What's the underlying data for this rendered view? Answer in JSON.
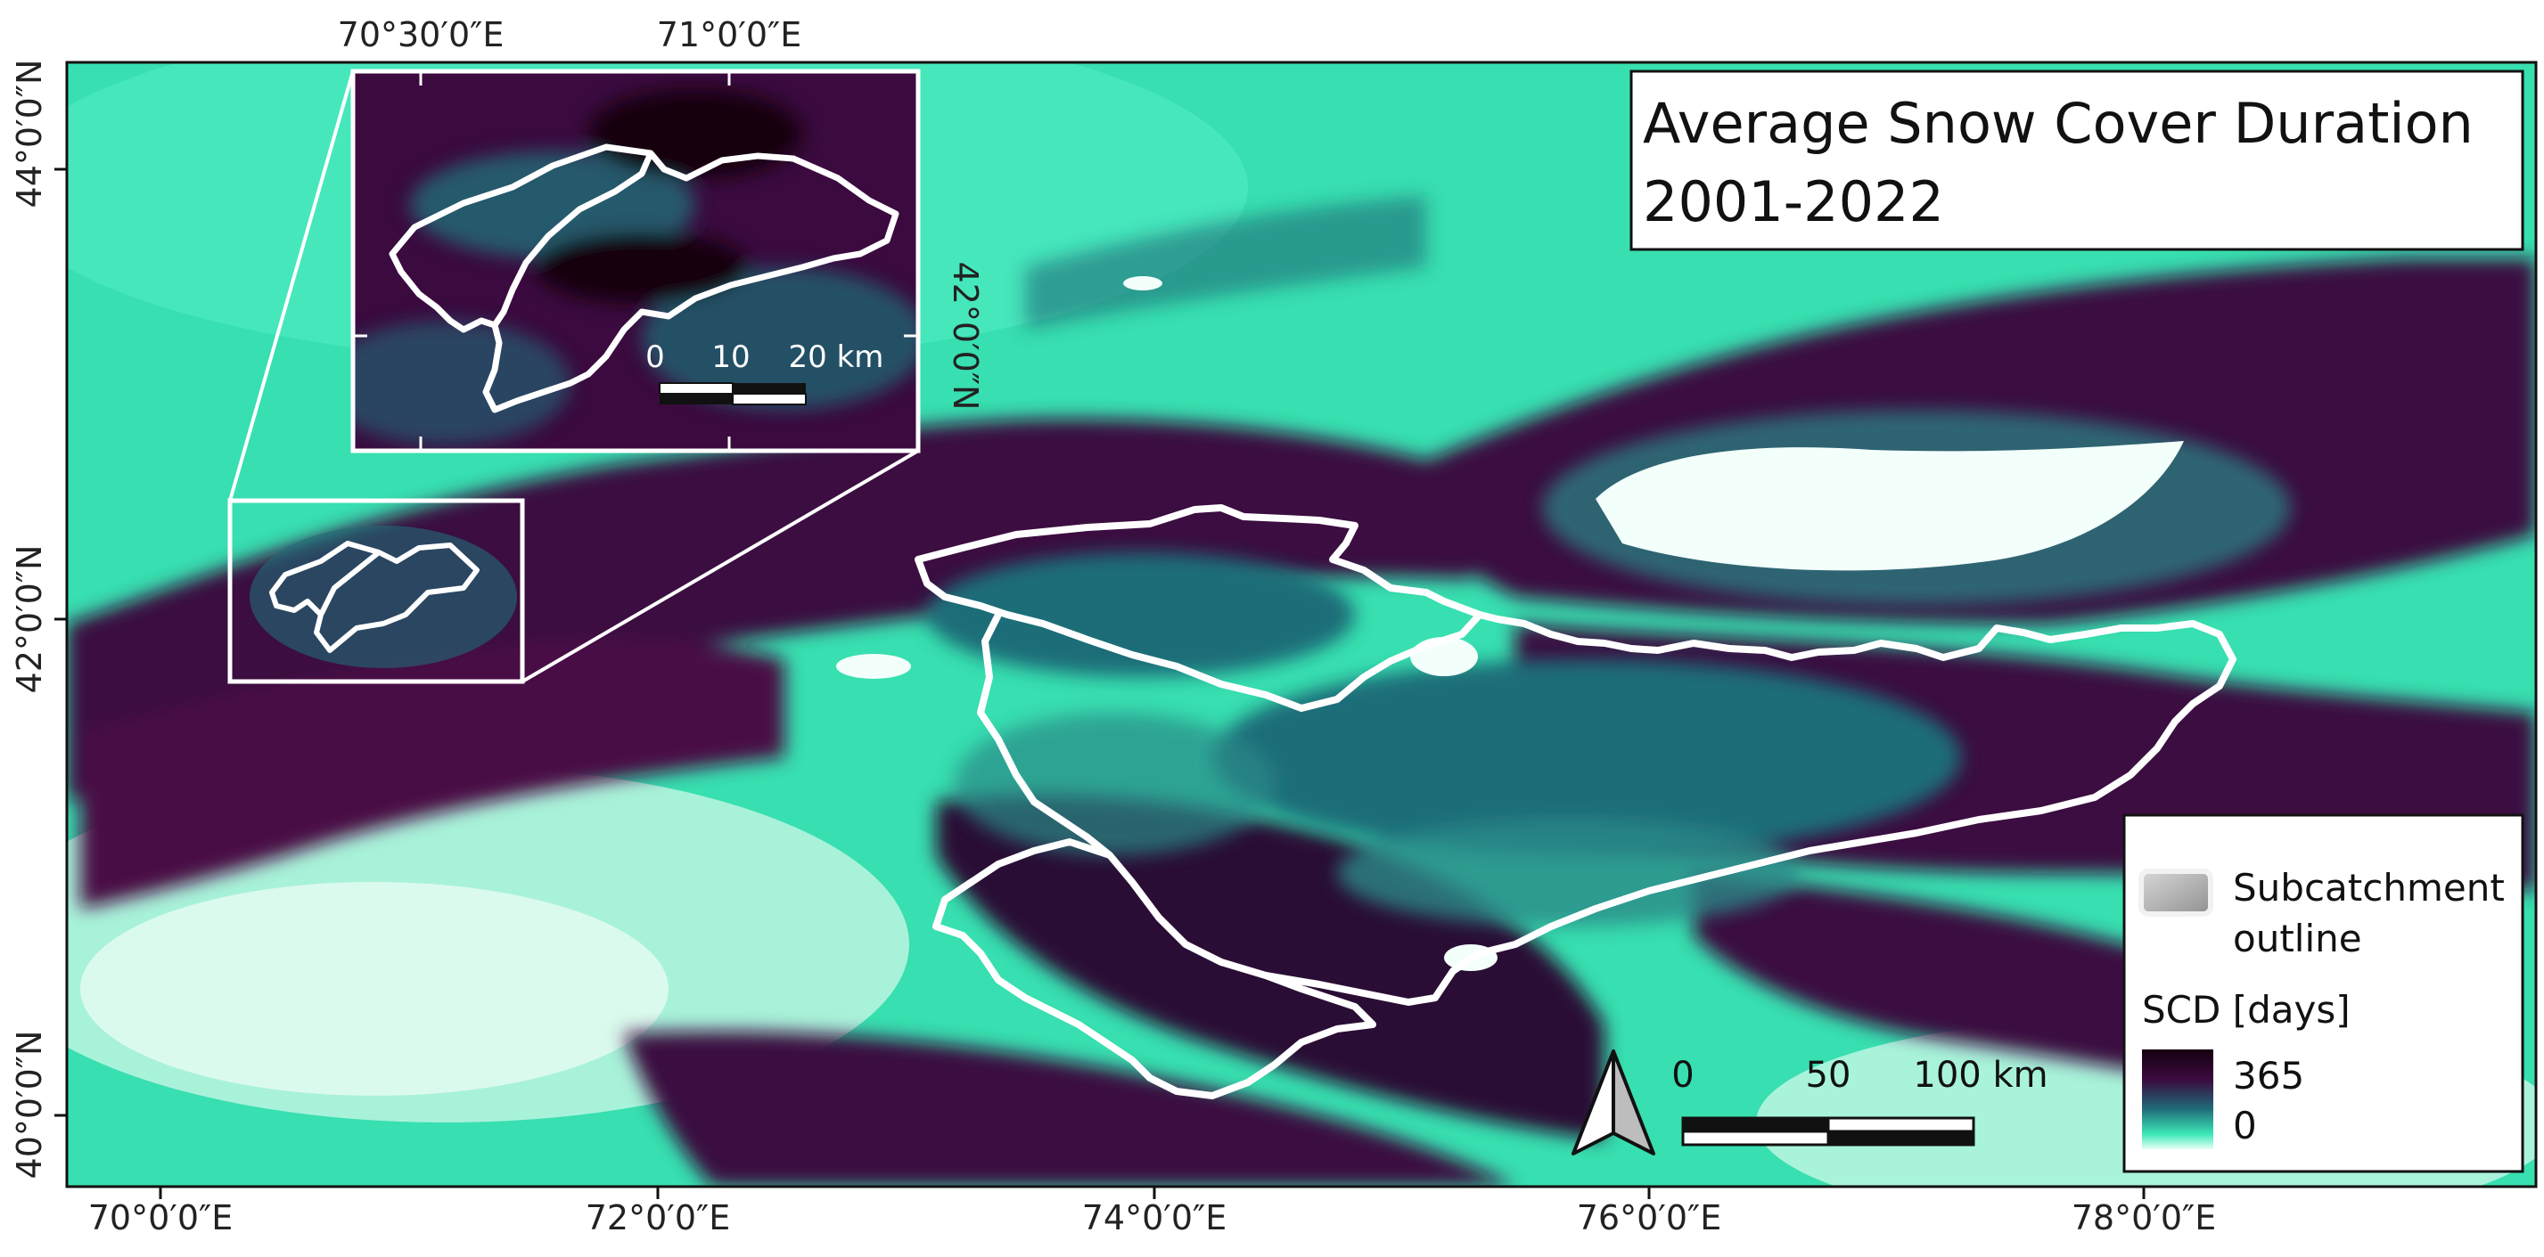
{
  "map": {
    "title_line1": "Average Snow Cover Duration",
    "title_line2": "2001-2022",
    "lon_labels": [
      "70°0′0″E",
      "72°0′0″E",
      "74°0′0″E",
      "76°0′0″E",
      "78°0′0″E"
    ],
    "lat_labels": [
      "44°0′0″N",
      "42°0′0″N",
      "40°0′0″N"
    ],
    "inset": {
      "lon_labels": [
        "70°30′0″E",
        "71°0′0″E"
      ],
      "lat_label": "42°0′0″N",
      "scale": {
        "tick0": "0",
        "tick1": "10",
        "tick2": "20 km"
      }
    },
    "scale_bar": {
      "tick0": "0",
      "tick1": "50",
      "tick2": "100 km"
    },
    "legend": {
      "outline_label_line1": "Subcatchment",
      "outline_label_line2": "outline",
      "ramp_title": "SCD [days]",
      "ramp_max": "365",
      "ramp_min": "0"
    },
    "colors": {
      "low_scd": "#3de8b8",
      "mid_scd": "#1f6d78",
      "high_scd": "#3b0a3f",
      "max_scd": "#150010",
      "lake": "#f3fffb",
      "outline": "#ffffff"
    }
  }
}
